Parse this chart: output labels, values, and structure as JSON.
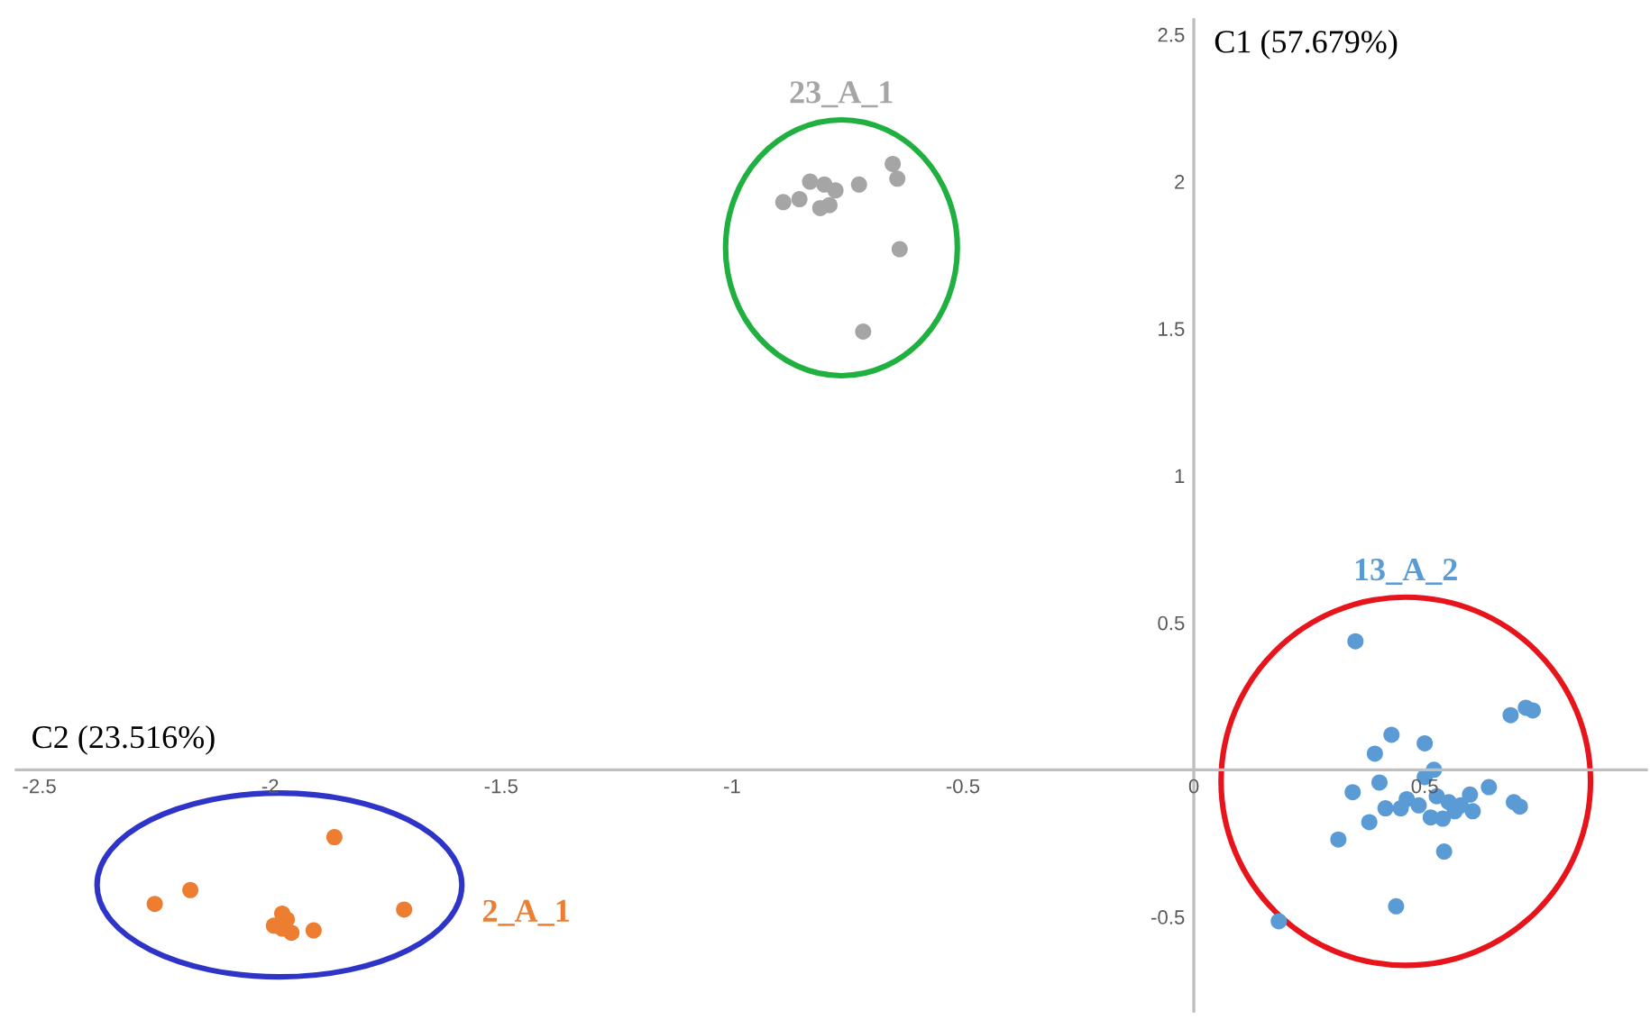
{
  "chart_data": {
    "type": "scatter",
    "xlabel": "C2 (23.516%)",
    "ylabel": "C1 (57.679%)",
    "xlim": [
      -2.55,
      0.98
    ],
    "ylim": [
      -0.82,
      2.55
    ],
    "xticks": [
      -2.5,
      -2,
      -1.5,
      -1,
      -0.5,
      0,
      0.5
    ],
    "yticks": [
      -0.5,
      0.5,
      1,
      1.5,
      2,
      2.5
    ],
    "grid": false,
    "legend": false,
    "marker": "circle",
    "series": [
      {
        "name": "23_A_1",
        "color": "#a5a5a5",
        "x": [
          -0.652,
          -0.642,
          -0.725,
          -0.831,
          -0.8,
          -0.776,
          -0.854,
          -0.889,
          -0.809,
          -0.789,
          -0.637,
          -0.716
        ],
        "values": [
          2.06,
          2.01,
          1.99,
          2.0,
          1.99,
          1.97,
          1.94,
          1.93,
          1.91,
          1.92,
          1.77,
          1.49
        ]
      },
      {
        "name": "13_A_2",
        "color": "#5b9bd5",
        "x": [
          0.35,
          0.686,
          0.719,
          0.734,
          0.428,
          0.5,
          0.392,
          0.52,
          0.5,
          0.402,
          0.344,
          0.639,
          0.461,
          0.415,
          0.448,
          0.526,
          0.552,
          0.598,
          0.591,
          0.565,
          0.513,
          0.539,
          0.693,
          0.706,
          0.38,
          0.313,
          0.542,
          0.438,
          0.184,
          0.487,
          0.578,
          0.604
        ],
        "values": [
          0.437,
          0.186,
          0.211,
          0.202,
          0.119,
          0.09,
          0.055,
          0.0,
          -0.025,
          -0.043,
          -0.076,
          -0.059,
          -0.1,
          -0.131,
          -0.131,
          -0.09,
          -0.11,
          -0.084,
          null,
          -0.141,
          -0.162,
          -0.166,
          -0.11,
          -0.125,
          -0.178,
          -0.237,
          -0.278,
          -0.464,
          -0.515,
          -0.121,
          -0.121,
          -0.141
        ]
      },
      {
        "name": "2_A_1",
        "color": "#ed7d31",
        "x": [
          -1.861,
          -2.173,
          -2.25,
          -1.71,
          -1.974,
          -1.964,
          -1.992,
          -1.954,
          -1.906,
          -1.974
        ],
        "values": [
          -0.229,
          -0.409,
          -0.456,
          -0.475,
          -0.489,
          -0.509,
          -0.53,
          -0.554,
          -0.546,
          -0.54
        ]
      }
    ]
  }
}
